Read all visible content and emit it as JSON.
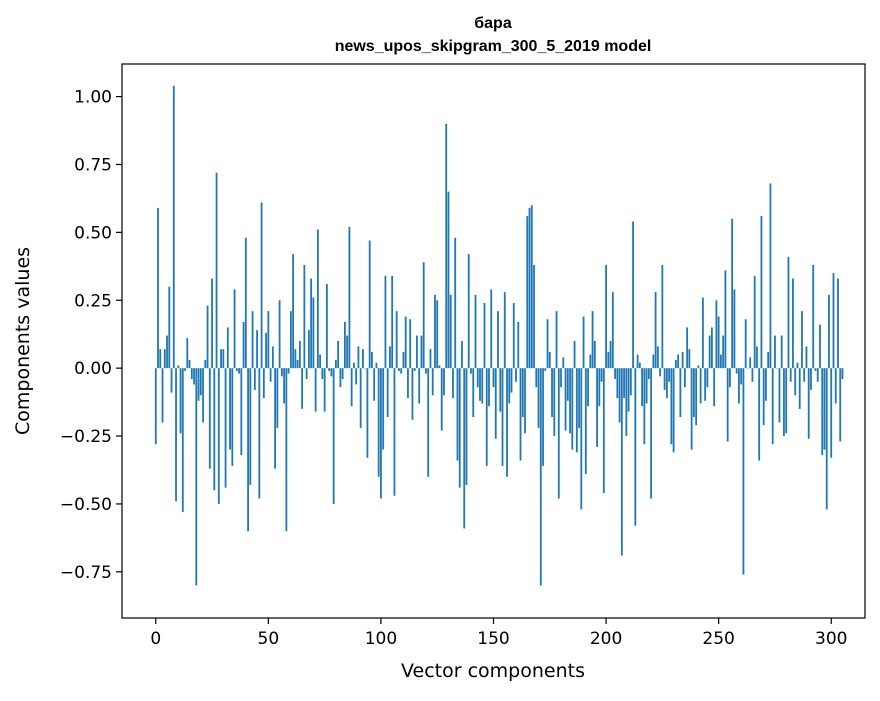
{
  "chart_data": {
    "type": "bar",
    "title_line1": "бара",
    "title_line2": "news_upos_skipgram_300_5_2019 model",
    "xlabel": "Vector components",
    "ylabel": "Components values",
    "xlim": [
      -15,
      315
    ],
    "ylim": [
      -0.92,
      1.12
    ],
    "xticks": [
      0,
      50,
      100,
      150,
      200,
      250,
      300
    ],
    "xtick_labels": [
      "0",
      "50",
      "100",
      "150",
      "200",
      "250",
      "300"
    ],
    "yticks": [
      -0.75,
      -0.5,
      -0.25,
      0.0,
      0.25,
      0.5,
      0.75,
      1.0
    ],
    "ytick_labels": [
      "−0.75",
      "−0.50",
      "−0.25",
      "0.00",
      "0.25",
      "0.50",
      "0.75",
      "1.00"
    ],
    "bar_color": "#1f77b4",
    "values": [
      -0.28,
      0.59,
      0.07,
      -0.2,
      0.07,
      0.12,
      0.3,
      -0.09,
      1.04,
      -0.49,
      0.01,
      -0.24,
      -0.53,
      -0.01,
      0.11,
      0.03,
      -0.04,
      -0.06,
      -0.8,
      -0.12,
      -0.1,
      -0.2,
      0.03,
      0.23,
      -0.37,
      0.33,
      -0.45,
      0.72,
      -0.5,
      0.07,
      0.07,
      -0.44,
      0.15,
      -0.3,
      -0.36,
      0.29,
      -0.01,
      -0.02,
      -0.32,
      0.17,
      0.48,
      -0.6,
      -0.43,
      0.21,
      -0.08,
      0.14,
      -0.48,
      0.61,
      -0.11,
      0.13,
      0.21,
      -0.05,
      0.08,
      -0.37,
      -0.22,
      0.25,
      -0.03,
      -0.13,
      -0.6,
      -0.02,
      0.21,
      0.42,
      0.07,
      0.03,
      0.1,
      -0.15,
      0.38,
      -0.04,
      0.14,
      0.33,
      0.26,
      -0.16,
      0.51,
      0.05,
      -0.04,
      -0.16,
      0.31,
      -0.01,
      -0.03,
      -0.5,
      0.03,
      0.1,
      -0.07,
      -0.04,
      0.17,
      0.12,
      0.52,
      -0.14,
      0.02,
      -0.06,
      0.08,
      -0.22,
      0.07,
      0.0,
      -0.33,
      0.47,
      0.06,
      -0.12,
      0.02,
      -0.4,
      -0.48,
      -0.3,
      0.34,
      -0.18,
      0.08,
      0.34,
      -0.47,
      0.21,
      -0.01,
      -0.02,
      0.06,
      0.19,
      -0.11,
      0.18,
      -0.19,
      -0.01,
      0.12,
      -0.13,
      0.12,
      0.39,
      -0.02,
      -0.4,
      0.07,
      -0.1,
      0.27,
      0.25,
      0.01,
      -0.23,
      -0.1,
      0.9,
      0.65,
      0.27,
      -0.11,
      0.48,
      -0.34,
      -0.44,
      0.1,
      -0.59,
      -0.43,
      0.42,
      -0.02,
      -0.18,
      0.27,
      -0.07,
      -0.12,
      -0.13,
      0.24,
      -0.36,
      -0.14,
      0.29,
      -0.07,
      -0.26,
      0.21,
      -0.16,
      -0.36,
      0.28,
      -0.4,
      -0.13,
      -0.09,
      0.24,
      -0.05,
      0.17,
      -0.34,
      -0.18,
      -0.24,
      0.56,
      0.59,
      0.6,
      0.38,
      -0.07,
      -0.22,
      -0.8,
      -0.36,
      -0.01,
      0.18,
      0.06,
      -0.18,
      -0.25,
      0.21,
      -0.48,
      -0.07,
      0.04,
      -0.23,
      -0.12,
      -0.24,
      -0.3,
      0.1,
      -0.31,
      -0.22,
      -0.52,
      0.19,
      -0.39,
      -0.14,
      0.05,
      0.21,
      0.1,
      -0.29,
      -0.14,
      -0.05,
      -0.46,
      0.38,
      0.06,
      0.1,
      0.28,
      -0.04,
      -0.11,
      -0.2,
      -0.69,
      -0.11,
      -0.25,
      -0.16,
      -0.1,
      0.54,
      -0.58,
      0.05,
      0.02,
      -0.14,
      -0.28,
      -0.13,
      -0.04,
      -0.48,
      0.05,
      0.28,
      0.08,
      -0.03,
      0.38,
      -0.08,
      -0.11,
      -0.05,
      -0.28,
      -0.31,
      0.03,
      0.05,
      -0.18,
      0.06,
      -0.07,
      0.15,
      0.07,
      -0.3,
      -0.18,
      -0.21,
      0.01,
      -0.13,
      0.26,
      -0.12,
      -0.07,
      0.12,
      0.15,
      -0.14,
      0.25,
      0.19,
      0.05,
      0.12,
      0.36,
      -0.27,
      -0.07,
      0.55,
      0.29,
      -0.02,
      -0.13,
      -0.06,
      -0.76,
      0.18,
      0.0,
      0.04,
      -0.05,
      0.34,
      0.08,
      -0.34,
      0.56,
      -0.21,
      -0.12,
      0.06,
      0.68,
      -0.28,
      0.12,
      0.0,
      -0.2,
      0.12,
      -0.25,
      -0.24,
      0.41,
      -0.05,
      0.33,
      -0.1,
      0.02,
      -0.15,
      0.21,
      -0.05,
      0.08,
      -0.26,
      -0.08,
      0.38,
      -0.01,
      -0.05,
      0.16,
      -0.32,
      -0.3,
      -0.52,
      0.27,
      -0.33,
      0.35,
      -0.13,
      0.33,
      -0.27,
      -0.04
    ]
  }
}
